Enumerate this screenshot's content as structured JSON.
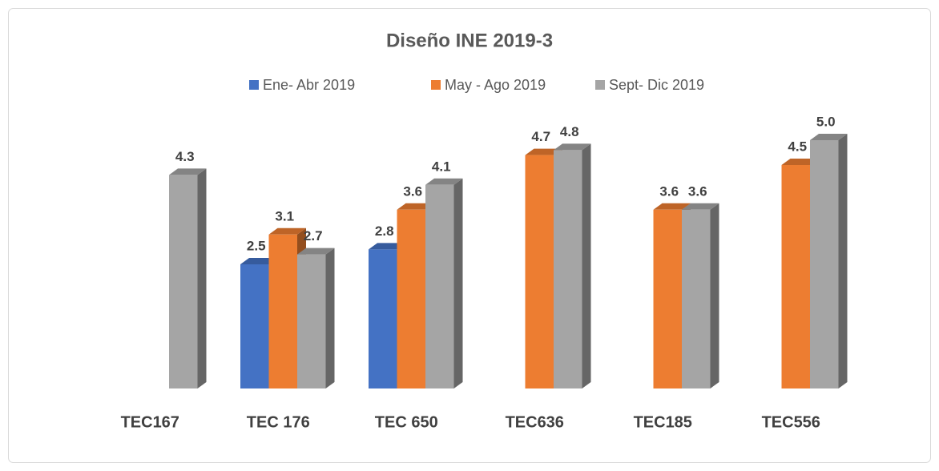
{
  "chart_data": {
    "type": "bar3d",
    "title": "Diseño INE 2019-3",
    "categories": [
      "TEC167",
      "TEC 176",
      "TEC 650",
      "TEC636",
      "TEC185",
      "TEC556"
    ],
    "series": [
      {
        "name": "Ene- Abr 2019",
        "color": "#4472c4",
        "values": [
          null,
          2.5,
          2.8,
          null,
          null,
          null
        ],
        "value_labels": [
          null,
          "2.5",
          "2.8",
          null,
          null,
          null
        ]
      },
      {
        "name": "May - Ago 2019",
        "color": "#ed7d31",
        "values": [
          null,
          3.1,
          3.6,
          4.7,
          3.6,
          4.5
        ],
        "value_labels": [
          null,
          "3.1",
          "3.6",
          "4.7",
          "3.6",
          "4.5"
        ]
      },
      {
        "name": "Sept- Dic 2019",
        "color": "#a5a5a5",
        "values": [
          4.3,
          2.7,
          4.1,
          4.8,
          3.6,
          5.0
        ],
        "value_labels": [
          "4.3",
          "2.7",
          "4.1",
          "4.8",
          "3.6",
          "5.0"
        ]
      }
    ],
    "legend": "top"
  }
}
